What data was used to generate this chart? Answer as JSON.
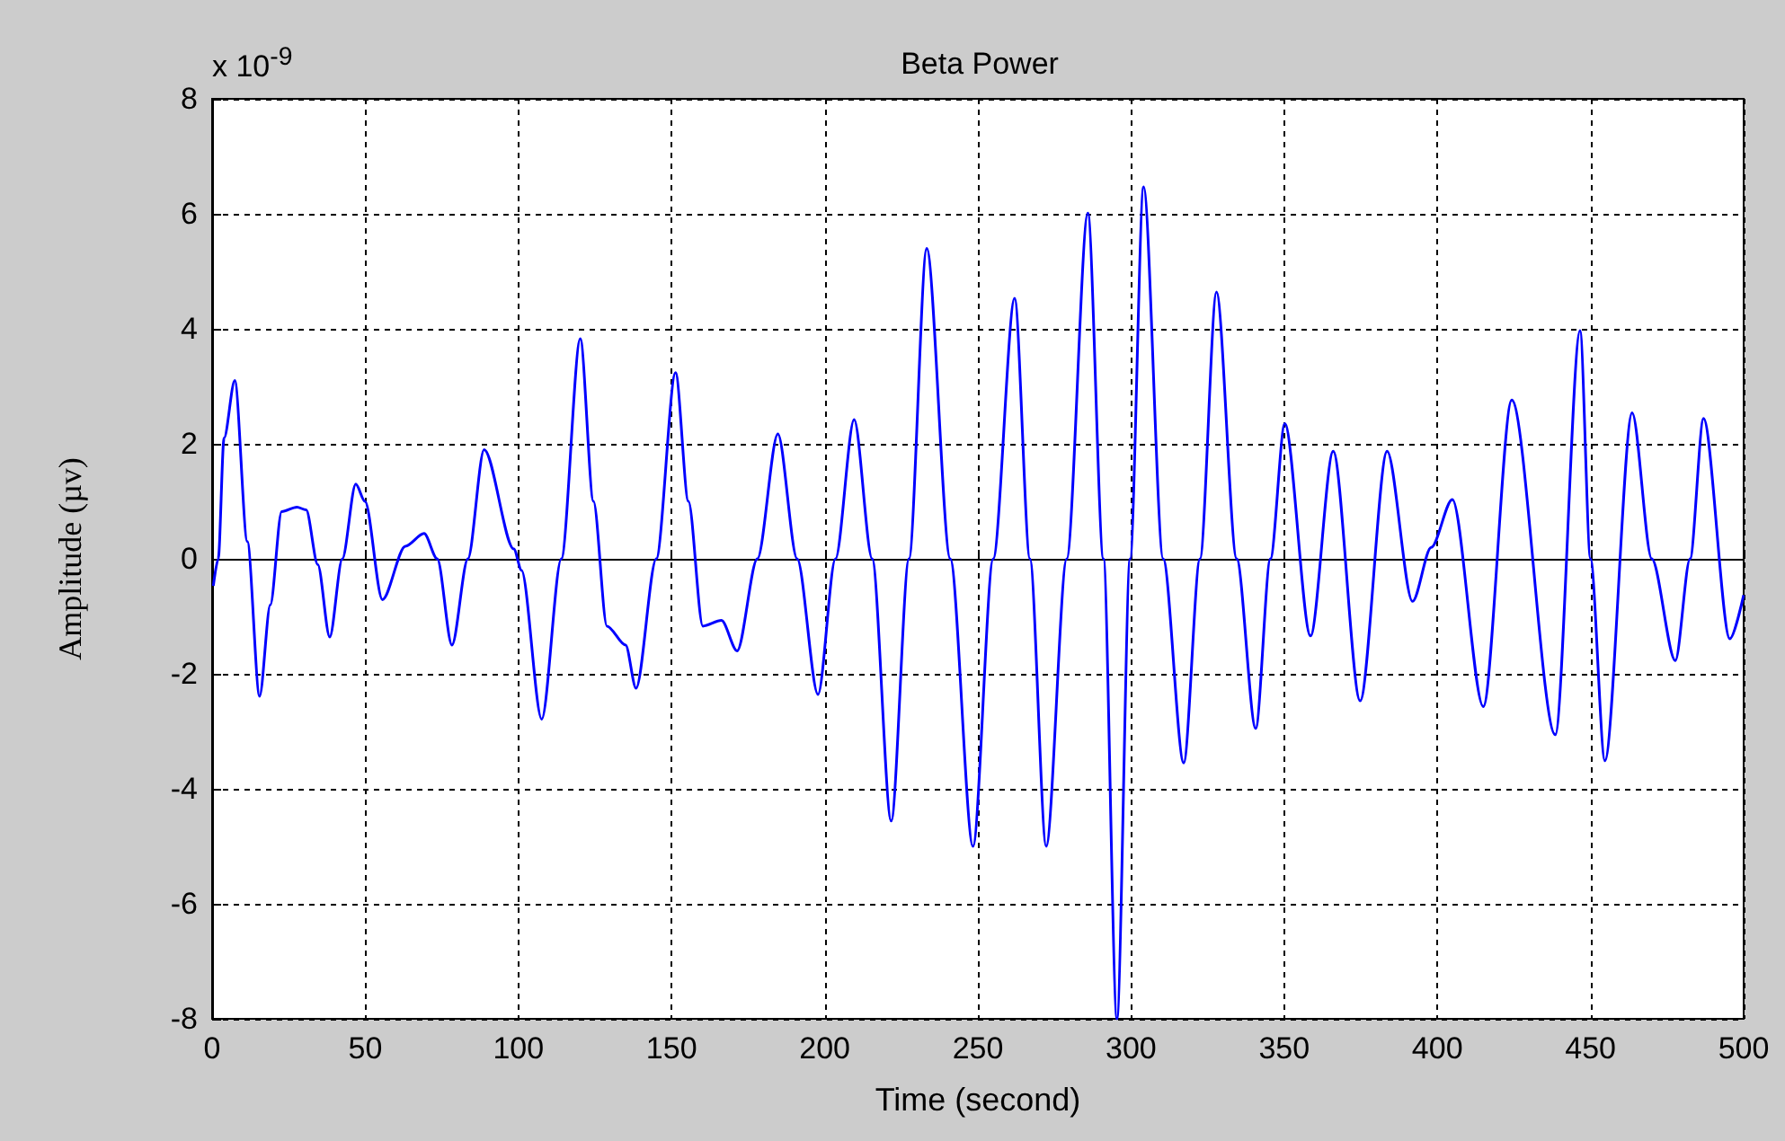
{
  "chart_data": {
    "type": "line",
    "title": "Beta Power",
    "xlabel": "Time (second)",
    "ylabel": "Amplitude (µv)",
    "annotations": [
      "x 10$^{-9}$"
    ],
    "xlim": [
      0,
      500
    ],
    "xticks": [
      0,
      50,
      100,
      150,
      200,
      250,
      300,
      350,
      400,
      450,
      500
    ],
    "ylim": [
      -8,
      8
    ],
    "yticks": [
      -8,
      -6,
      -4,
      -2,
      0,
      2,
      4,
      6,
      8
    ],
    "grid": true,
    "marker": "none",
    "line_style": "solid",
    "series": [
      {
        "color": "#0000ff",
        "x": [
          0.4,
          2,
          3.9,
          7.4,
          11.5,
          15.5,
          19,
          22.7,
          27.7,
          30.7,
          34.5,
          38.4,
          42.5,
          46.9,
          49.9,
          55.6,
          63.1,
          69.2,
          73.5,
          78.3,
          83.5,
          88.8,
          98.5,
          101,
          107.6,
          114,
          120.2,
          124.5,
          128.9,
          135,
          138.4,
          145,
          151.3,
          155.5,
          160.2,
          166.3,
          171.4,
          178,
          184.7,
          191,
          197.8,
          203.5,
          209.6,
          215.5,
          221.7,
          227.5,
          233.3,
          241,
          248.4,
          255,
          262,
          267,
          272.3,
          279,
          285.9,
          291,
          295.4,
          299.7,
          304.1,
          310.5,
          317.2,
          322.5,
          327.9,
          334.5,
          340.7,
          345.5,
          350.2,
          358.6,
          366,
          374.8,
          383.6,
          391.9,
          398,
          404.9,
          415,
          424.3,
          438.5,
          446.6,
          450,
          454.7,
          463.6,
          470,
          477.7,
          482.5,
          486.9,
          495.5,
          500
        ],
        "values": [
          -0.47,
          0.0,
          2.1,
          3.1,
          0.3,
          -2.39,
          -0.8,
          0.82,
          0.9,
          0.85,
          -0.1,
          -1.36,
          0.0,
          1.3,
          1.0,
          -0.71,
          0.22,
          0.44,
          0.0,
          -1.5,
          0.0,
          1.9,
          0.17,
          -0.2,
          -2.79,
          0.0,
          3.83,
          1.0,
          -1.17,
          -1.5,
          -2.25,
          0.0,
          3.24,
          1.0,
          -1.17,
          -1.07,
          -1.6,
          0.0,
          2.17,
          0.0,
          -2.36,
          0.0,
          2.42,
          0.0,
          -4.56,
          0.0,
          5.4,
          0.0,
          -5.0,
          0.0,
          4.53,
          0.0,
          -5.0,
          0.0,
          6.01,
          0.0,
          -8.0,
          0.0,
          6.47,
          0.0,
          -3.55,
          0.0,
          4.64,
          0.0,
          -2.95,
          0.0,
          2.35,
          -1.34,
          1.87,
          -2.47,
          1.87,
          -0.74,
          0.2,
          1.03,
          -2.57,
          2.76,
          -3.06,
          3.97,
          0.0,
          -3.51,
          2.54,
          0.0,
          -1.77,
          0.0,
          2.44,
          -1.39,
          -0.63
        ]
      }
    ]
  }
}
